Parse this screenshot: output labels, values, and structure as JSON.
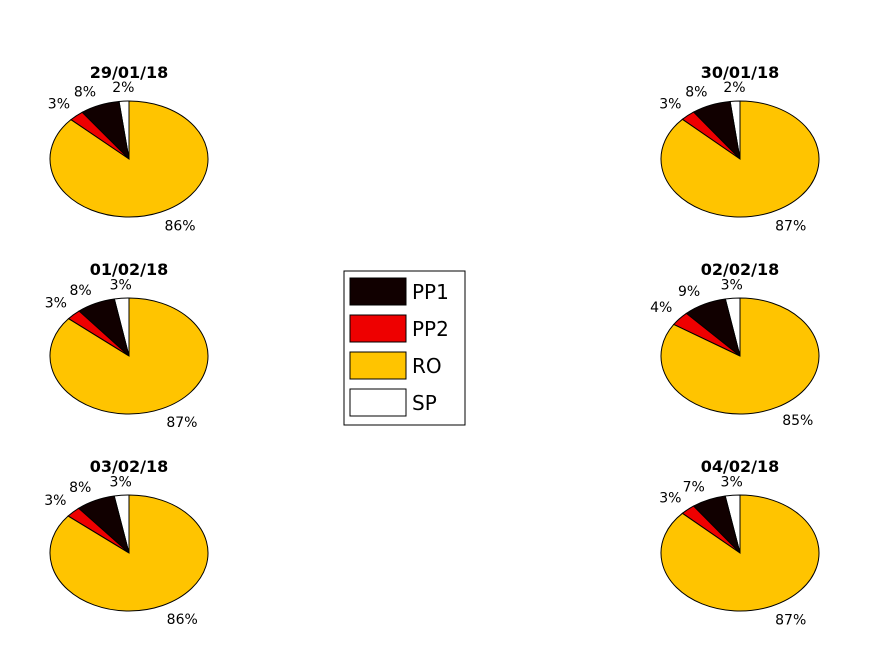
{
  "chart_data": {
    "type": "pie",
    "legend_placement": "center",
    "grid": false,
    "series_labels": [
      "PP1",
      "PP2",
      "RO",
      "SP"
    ],
    "colors": {
      "PP1": "#110000",
      "PP2": "#ee0000",
      "RO": "#ffc400",
      "SP": "#ffffff"
    },
    "pies": [
      {
        "title": "29/01/18",
        "values": [
          8,
          3,
          86,
          2
        ],
        "labels": [
          "8%",
          "3%",
          "86%",
          "2%"
        ]
      },
      {
        "title": "30/01/18",
        "values": [
          8,
          3,
          87,
          2
        ],
        "labels": [
          "8%",
          "3%",
          "87%",
          "2%"
        ]
      },
      {
        "title": "01/02/18",
        "values": [
          8,
          3,
          87,
          3
        ],
        "labels": [
          "8%",
          "3%",
          "87%",
          "3%"
        ]
      },
      {
        "title": "02/02/18",
        "values": [
          9,
          4,
          85,
          3
        ],
        "labels": [
          "9%",
          "4%",
          "85%",
          "3%"
        ]
      },
      {
        "title": "03/02/18",
        "values": [
          8,
          3,
          86,
          3
        ],
        "labels": [
          "8%",
          "3%",
          "86%",
          "3%"
        ]
      },
      {
        "title": "04/02/18",
        "values": [
          7,
          3,
          87,
          3
        ],
        "labels": [
          "7%",
          "3%",
          "87%",
          "3%"
        ]
      }
    ]
  }
}
